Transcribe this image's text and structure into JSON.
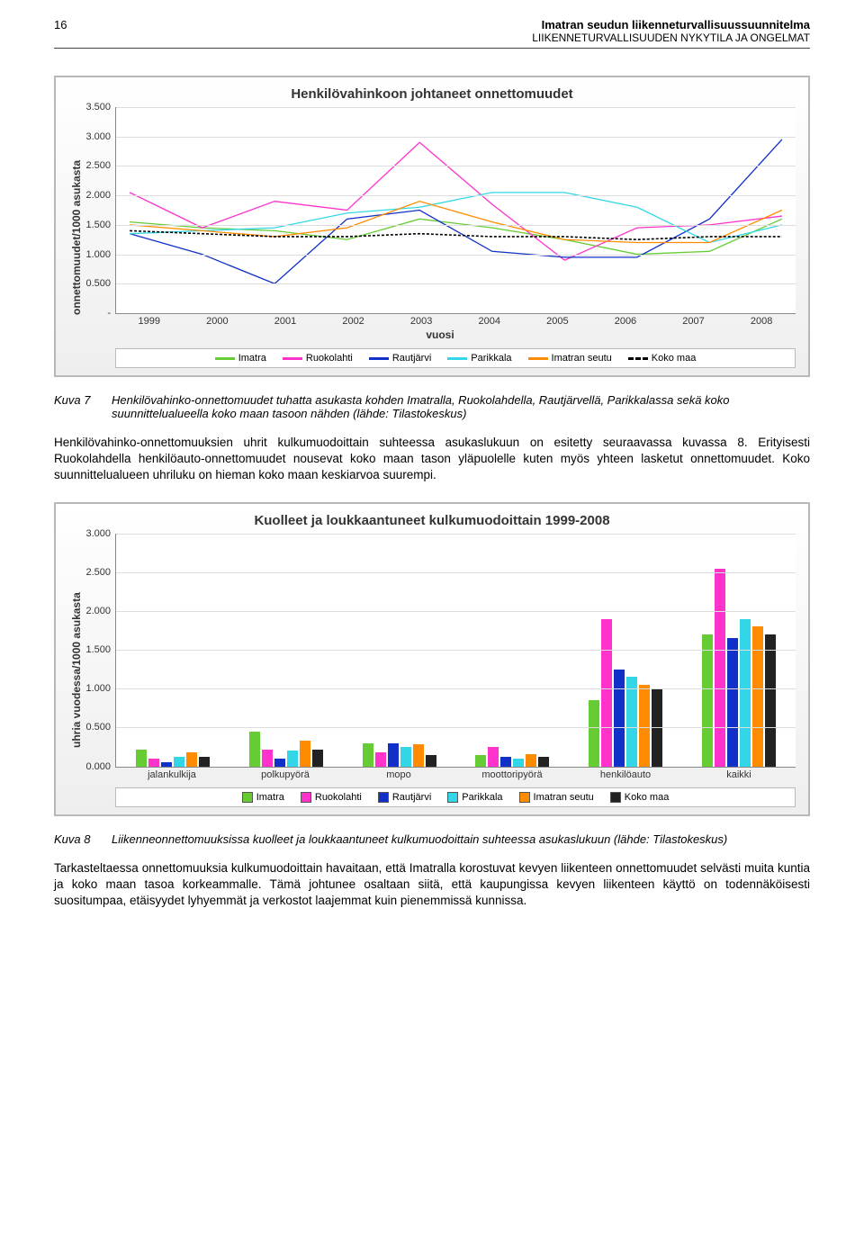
{
  "page_number": "16",
  "header_title": "Imatran seudun liikenneturvallisuussuunnitelma",
  "header_sub": "LIIKENNETURVALLISUUDEN NYKYTILA JA ONGELMAT",
  "chart1": {
    "title": "Henkilövahinkoon johtaneet onnettomuudet",
    "ylabel": "onnettomuudet/1000 asukasta",
    "xlabel": "vuosi",
    "ylim": [
      0,
      3.5
    ],
    "ystep": 0.5,
    "yticks": [
      "-",
      "0.500",
      "1.000",
      "1.500",
      "2.000",
      "2.500",
      "3.000",
      "3.500"
    ],
    "years": [
      "1999",
      "2000",
      "2001",
      "2002",
      "2003",
      "2004",
      "2005",
      "2006",
      "2007",
      "2008"
    ],
    "series": {
      "Imatra": {
        "color": "#66cc33",
        "vals": [
          1.55,
          1.45,
          1.4,
          1.25,
          1.6,
          1.45,
          1.25,
          1.0,
          1.05,
          1.6
        ]
      },
      "Ruokolahti": {
        "color": "#ff33cc",
        "vals": [
          2.05,
          1.45,
          1.9,
          1.75,
          2.9,
          1.85,
          0.9,
          1.45,
          1.5,
          1.65
        ]
      },
      "Rautjärvi": {
        "color": "#1030c8",
        "vals": [
          1.35,
          1.0,
          0.5,
          1.6,
          1.75,
          1.05,
          0.95,
          0.95,
          1.6,
          2.95
        ]
      },
      "Parikkala": {
        "color": "#33d6e6",
        "vals": [
          1.35,
          1.4,
          1.45,
          1.7,
          1.8,
          2.05,
          2.05,
          1.8,
          1.2,
          1.5
        ]
      },
      "Imatran seutu": {
        "color": "#ff8c00",
        "vals": [
          1.5,
          1.4,
          1.3,
          1.45,
          1.9,
          1.55,
          1.25,
          1.2,
          1.2,
          1.75
        ]
      }
    },
    "koko_maa": {
      "label": "Koko maa",
      "vals": [
        1.4,
        1.35,
        1.3,
        1.3,
        1.35,
        1.3,
        1.3,
        1.25,
        1.3,
        1.3
      ]
    },
    "legend": [
      "Imatra",
      "Ruokolahti",
      "Rautjärvi",
      "Parikkala",
      "Imatran seutu",
      "Koko maa"
    ]
  },
  "caption1_label": "Kuva 7",
  "caption1_text": "Henkilövahinko-onnettomuudet tuhatta asukasta kohden Imatralla, Ruokolahdella, Rautjärvellä, Parikkalassa sekä koko suunnittelualueella koko maan tasoon nähden (lähde: Tilastokeskus)",
  "para1": "Henkilövahinko-onnettomuuksien uhrit kulkumuodoittain suhteessa asukaslukuun on esitetty seuraavassa kuvassa 8. Erityisesti Ruokolahdella henkilöauto-onnettomuudet nousevat koko maan tason yläpuolelle kuten myös yhteen lasketut onnettomuudet. Koko suunnittelualueen uhriluku on hieman koko maan keskiarvoa suurempi.",
  "chart2": {
    "title": "Kuolleet ja loukkaantuneet kulkumuodoittain 1999-2008",
    "ylabel": "uhria vuodessa/1000 asukasta",
    "ylim": [
      0,
      3.0
    ],
    "ystep": 0.5,
    "yticks": [
      "0.000",
      "0.500",
      "1.000",
      "1.500",
      "2.000",
      "2.500",
      "3.000"
    ],
    "categories": [
      "jalankulkija",
      "polkupyörä",
      "mopo",
      "moottoripyörä",
      "henkilöauto",
      "kaikki"
    ],
    "series_order": [
      "Imatra",
      "Ruokolahti",
      "Rautjärvi",
      "Parikkala",
      "Imatran seutu",
      "Koko maa"
    ],
    "colors": {
      "Imatra": "#66cc33",
      "Ruokolahti": "#ff33cc",
      "Rautjärvi": "#1030c8",
      "Parikkala": "#33d6e6",
      "Imatran seutu": "#ff8c00",
      "Koko maa": "#222222"
    },
    "data": {
      "jalankulkija": [
        0.22,
        0.1,
        0.05,
        0.12,
        0.18,
        0.12
      ],
      "polkupyörä": [
        0.45,
        0.22,
        0.1,
        0.2,
        0.33,
        0.22
      ],
      "mopo": [
        0.3,
        0.18,
        0.3,
        0.25,
        0.28,
        0.15
      ],
      "moottoripyörä": [
        0.15,
        0.25,
        0.12,
        0.1,
        0.16,
        0.12
      ],
      "henkilöauto": [
        0.85,
        1.9,
        1.25,
        1.15,
        1.05,
        1.0
      ],
      "kaikki": [
        1.7,
        2.55,
        1.65,
        1.9,
        1.8,
        1.7
      ]
    }
  },
  "caption2_label": "Kuva 8",
  "caption2_text": "Liikenneonnettomuuksissa kuolleet ja loukkaantuneet kulkumuodoittain suhteessa asukaslukuun (lähde: Tilastokeskus)",
  "para2": "Tarkasteltaessa onnettomuuksia kulkumuodoittain havaitaan, että Imatralla korostuvat kevyen liikenteen onnettomuudet selvästi muita kuntia ja koko maan tasoa korkeammalle. Tämä johtunee osaltaan siitä, että kaupungissa kevyen liikenteen käyttö on todennäköisesti suositumpaa, etäisyydet lyhyemmät ja verkostot laajemmat kuin pienemmissä kunnissa."
}
